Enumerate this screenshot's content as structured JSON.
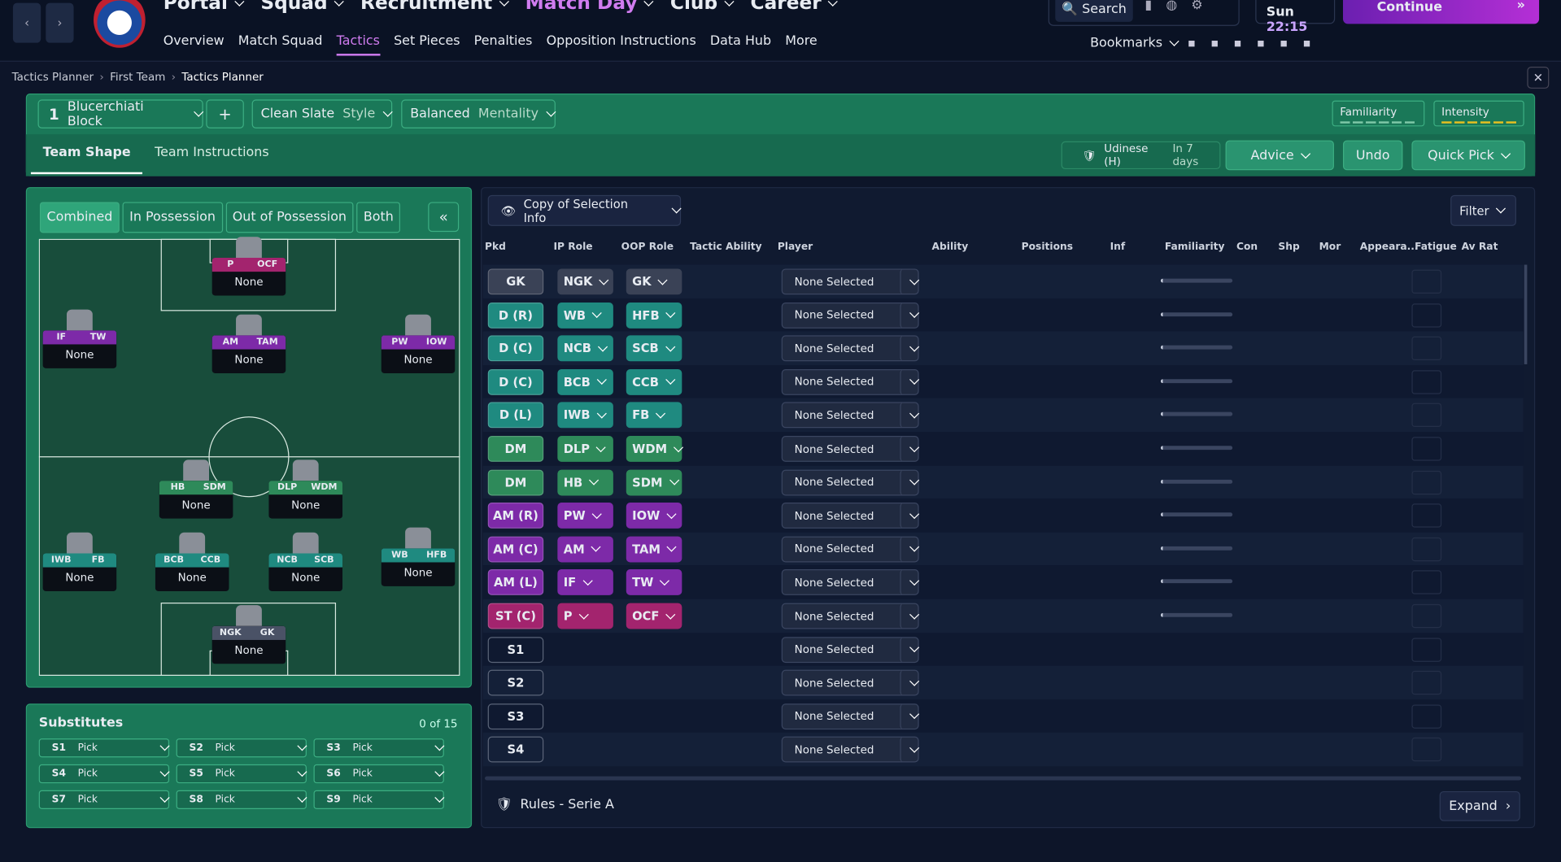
{
  "nav": {
    "main": [
      "Portal",
      "Squad",
      "Recruitment",
      "Match Day",
      "Club",
      "Career"
    ],
    "sub": [
      "Overview",
      "Match Squad",
      "Tactics",
      "Set Pieces",
      "Penalties",
      "Opposition Instructions",
      "Data Hub",
      "More"
    ]
  },
  "top": {
    "search": "Search",
    "day": "Sun",
    "time": "22:15",
    "continue": "Continue",
    "bookmarks": "Bookmarks"
  },
  "breadcrumb": [
    "Tactics Planner",
    "First Team",
    "Tactics Planner"
  ],
  "tactic": {
    "slot": "1",
    "name": "Blucerchiati Block",
    "add": "+",
    "style": "Clean Slate",
    "style_label": "Style",
    "mentality": "Balanced",
    "mentality_label": "Mentality",
    "familiarity": "Familiarity",
    "intensity": "Intensity"
  },
  "tabs": [
    "Team Shape",
    "Team Instructions"
  ],
  "next_match": {
    "opponent": "Udinese (H)",
    "when": "In 7 days"
  },
  "actions": [
    "Advice",
    "Undo",
    "Quick Pick"
  ],
  "views": [
    "Combined",
    "In Possession",
    "Out of Possession",
    "Both"
  ],
  "pitch": [
    {
      "roles": [
        "P",
        "OCF"
      ],
      "player": "None"
    },
    {
      "roles": [
        "IF",
        "TW"
      ],
      "player": "None"
    },
    {
      "roles": [
        "AM",
        "TAM"
      ],
      "player": "None"
    },
    {
      "roles": [
        "PW",
        "IOW"
      ],
      "player": "None"
    },
    {
      "roles": [
        "HB",
        "SDM"
      ],
      "player": "None"
    },
    {
      "roles": [
        "DLP",
        "WDM"
      ],
      "player": "None"
    },
    {
      "roles": [
        "IWB",
        "FB"
      ],
      "player": "None"
    },
    {
      "roles": [
        "BCB",
        "CCB"
      ],
      "player": "None"
    },
    {
      "roles": [
        "NCB",
        "SCB"
      ],
      "player": "None"
    },
    {
      "roles": [
        "WB",
        "HFB"
      ],
      "player": "None"
    },
    {
      "roles": [
        "NGK",
        "GK"
      ],
      "player": "None"
    }
  ],
  "subs": {
    "title": "Substitutes",
    "count": "0 of 15",
    "slots": [
      {
        "slot": "S1",
        "player": "Pick"
      },
      {
        "slot": "S2",
        "player": "Pick"
      },
      {
        "slot": "S3",
        "player": "Pick"
      },
      {
        "slot": "S4",
        "player": "Pick"
      },
      {
        "slot": "S5",
        "player": "Pick"
      },
      {
        "slot": "S6",
        "player": "Pick"
      },
      {
        "slot": "S7",
        "player": "Pick"
      },
      {
        "slot": "S8",
        "player": "Pick"
      },
      {
        "slot": "S9",
        "player": "Pick"
      }
    ]
  },
  "selection": {
    "view": "Copy of Selection Info",
    "filter": "Filter",
    "columns": [
      "Pkd",
      "IP Role",
      "OOP Role",
      "Tactic Ability",
      "Player",
      "Ability",
      "Positions",
      "Inf",
      "Familiarity",
      "Con",
      "Shp",
      "Mor",
      "Appeara...",
      "Fatigue",
      "Av Rat"
    ],
    "rows": [
      {
        "pos": "GK",
        "ip": "NGK",
        "oop": "GK",
        "player": "None Selected"
      },
      {
        "pos": "D (R)",
        "ip": "WB",
        "oop": "HFB",
        "player": "None Selected"
      },
      {
        "pos": "D (C)",
        "ip": "NCB",
        "oop": "SCB",
        "player": "None Selected"
      },
      {
        "pos": "D (C)",
        "ip": "BCB",
        "oop": "CCB",
        "player": "None Selected"
      },
      {
        "pos": "D (L)",
        "ip": "IWB",
        "oop": "FB",
        "player": "None Selected"
      },
      {
        "pos": "DM",
        "ip": "DLP",
        "oop": "WDM",
        "player": "None Selected"
      },
      {
        "pos": "DM",
        "ip": "HB",
        "oop": "SDM",
        "player": "None Selected"
      },
      {
        "pos": "AM (R)",
        "ip": "PW",
        "oop": "IOW",
        "player": "None Selected"
      },
      {
        "pos": "AM (C)",
        "ip": "AM",
        "oop": "TAM",
        "player": "None Selected"
      },
      {
        "pos": "AM (L)",
        "ip": "IF",
        "oop": "TW",
        "player": "None Selected"
      },
      {
        "pos": "ST (C)",
        "ip": "P",
        "oop": "OCF",
        "player": "None Selected"
      },
      {
        "pos": "S1",
        "player": "None Selected"
      },
      {
        "pos": "S2",
        "player": "None Selected"
      },
      {
        "pos": "S3",
        "player": "None Selected"
      },
      {
        "pos": "S4",
        "player": "None Selected"
      }
    ]
  },
  "footer": {
    "rules": "Rules - Serie A",
    "expand": "Expand"
  }
}
